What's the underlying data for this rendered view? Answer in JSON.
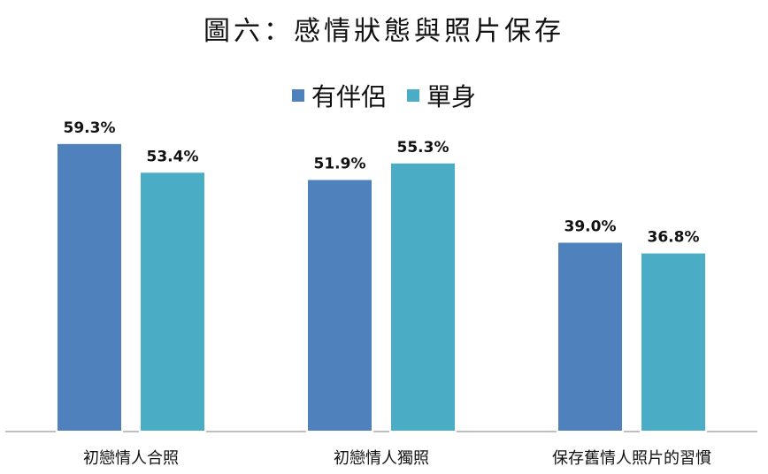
{
  "chart_data": {
    "type": "bar",
    "title": "圖六：感情狀態與照片保存",
    "categories": [
      "初戀情人合照",
      "初戀情人獨照",
      "保存舊情人照片的習慣"
    ],
    "series": [
      {
        "name": "有伴侶",
        "color": "#4f81bd",
        "values": [
          59.3,
          51.9,
          39.0
        ],
        "labels": [
          "59.3%",
          "51.9%",
          "39.0%"
        ]
      },
      {
        "name": "單身",
        "color": "#4bacc6",
        "values": [
          53.4,
          55.3,
          36.8
        ],
        "labels": [
          "53.4%",
          "55.3%",
          "36.8%"
        ]
      }
    ],
    "ylim": [
      0,
      66
    ],
    "legend_position": "top",
    "grid": false
  }
}
